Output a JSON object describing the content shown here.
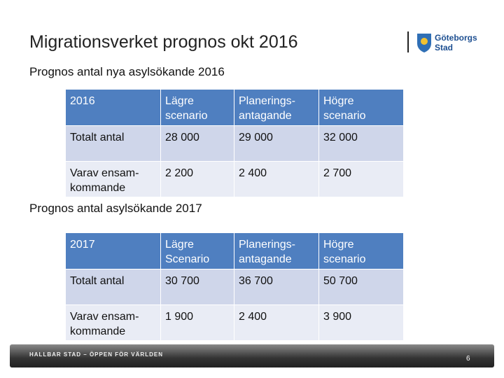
{
  "header": {
    "title": "Migrationsverket prognos okt 2016",
    "logo": "Göteborgs Stad"
  },
  "sections": [
    {
      "subtitle": "Prognos antal nya asylsökande 2016",
      "table": {
        "header": [
          "2016",
          "Lägre scenario",
          "Planerings-antagande",
          "Högre scenario"
        ],
        "rows": [
          [
            "Totalt antal",
            "28 000",
            "29 000",
            "32 000"
          ],
          [
            "Varav ensam-kommande",
            "2 200",
            "2 400",
            "2 700"
          ]
        ]
      }
    },
    {
      "subtitle": "Prognos antal asylsökande 2017",
      "table": {
        "header": [
          "2017",
          "Lägre Scenario",
          "Planerings-antagande",
          "Högre scenario"
        ],
        "rows": [
          [
            "Totalt antal",
            "30 700",
            "36 700",
            "50 700"
          ],
          [
            "Varav ensam-kommande",
            "1 900",
            "2 400",
            "3 900"
          ]
        ]
      }
    }
  ],
  "footer": {
    "text": "HALLBAR STAD – ÖPPEN FÖR VÄRLDEN",
    "page": "6"
  }
}
